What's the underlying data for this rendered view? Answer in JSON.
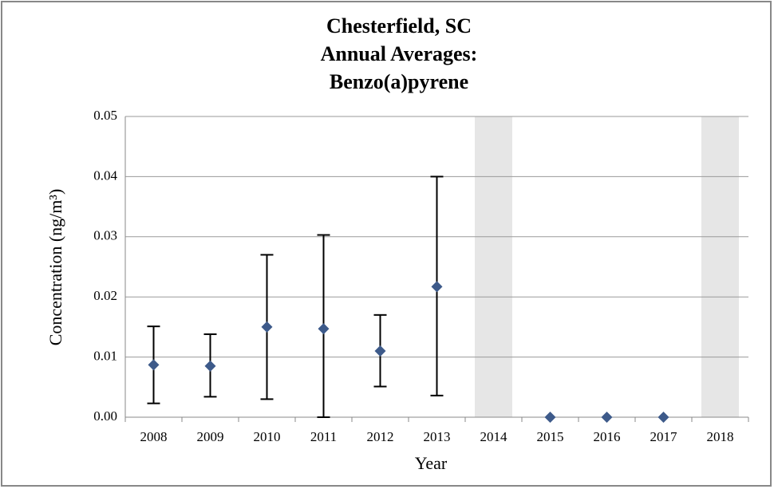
{
  "chart_data": {
    "type": "errorbar",
    "title": [
      "Chesterfield, SC",
      "Annual Averages:",
      "Benzo(a)pyrene"
    ],
    "x_label": "Year",
    "y_label": "Concentration (ng/m³)",
    "categories": [
      "2008",
      "2009",
      "2010",
      "2011",
      "2012",
      "2013",
      "2014",
      "2015",
      "2016",
      "2017",
      "2018"
    ],
    "values": [
      0.0087,
      0.0085,
      0.015,
      0.0147,
      0.011,
      0.0217,
      null,
      0,
      0,
      0,
      null
    ],
    "lower": [
      0.0023,
      0.0034,
      0.003,
      0,
      0.0051,
      0.0036,
      null,
      null,
      null,
      null,
      null
    ],
    "upper": [
      0.0151,
      0.0138,
      0.027,
      0.0303,
      0.017,
      0.04,
      null,
      null,
      null,
      null,
      null
    ],
    "color": "#3d5a8a",
    "shade_color": "#e6e6e6",
    "ylim": [
      0,
      0.05
    ],
    "yticks": [
      {
        "value": 0,
        "label": "0.00"
      },
      0.01,
      0.02,
      0.03,
      0.04,
      0.05
    ],
    "grid": true
  }
}
